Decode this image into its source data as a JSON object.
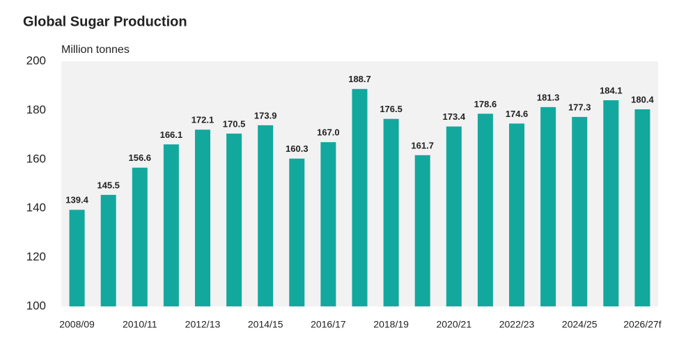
{
  "chart_data": {
    "type": "bar",
    "title": "Global Sugar Production",
    "y_label": "Million tonnes",
    "categories": [
      "2008/09",
      null,
      "2010/11",
      null,
      "2012/13",
      null,
      "2014/15",
      null,
      "2016/17",
      null,
      "2018/19",
      null,
      "2020/21",
      null,
      "2022/23",
      null,
      "2024/25",
      null,
      "2026/27f"
    ],
    "values": [
      139.4,
      145.5,
      156.6,
      166.1,
      172.1,
      170.5,
      173.9,
      160.3,
      167.0,
      188.7,
      176.5,
      161.7,
      173.4,
      178.6,
      174.6,
      181.3,
      177.3,
      184.1,
      180.4
    ],
    "value_labels": [
      "139.4",
      "145.5",
      "156.6",
      "166.1",
      "172.1",
      "170.5",
      "173.9",
      "160.3",
      "167.0",
      "188.7",
      "176.5",
      "161.7",
      "173.4",
      "178.6",
      "174.6",
      "181.3",
      "177.3",
      "184.1",
      "180.4"
    ],
    "color": "#13a89e",
    "ylim": [
      100,
      200
    ],
    "yticks": [
      100,
      120,
      140,
      160,
      180,
      200
    ],
    "grid": false
  }
}
